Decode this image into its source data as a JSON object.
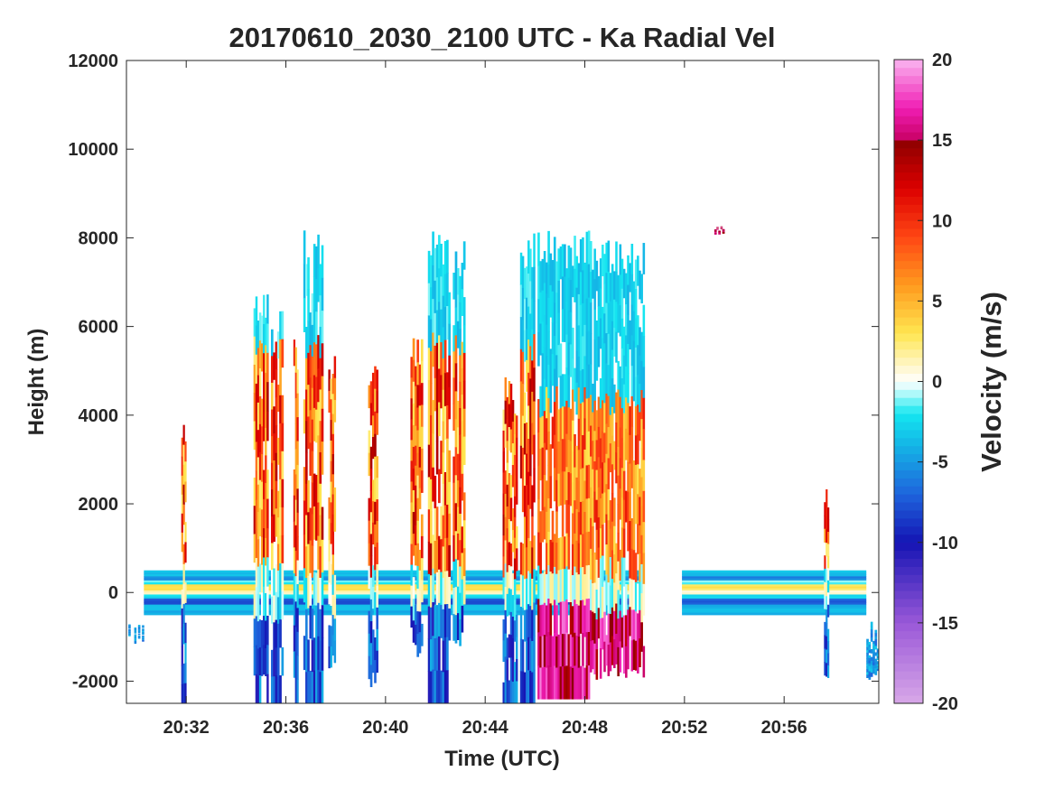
{
  "chart_data": {
    "type": "heatmap",
    "title": "20170610_2030_2100 UTC - Ka Radial Vel",
    "xlabel": "Time (UTC)",
    "ylabel": "Height (m)",
    "x_range_minutes": [
      29.6,
      59.8
    ],
    "x_ticks": [
      {
        "minute": 32,
        "label": "20:32"
      },
      {
        "minute": 36,
        "label": "20:36"
      },
      {
        "minute": 40,
        "label": "20:40"
      },
      {
        "minute": 44,
        "label": "20:44"
      },
      {
        "minute": 48,
        "label": "20:48"
      },
      {
        "minute": 52,
        "label": "20:52"
      },
      {
        "minute": 56,
        "label": "20:56"
      }
    ],
    "ylim": [
      -2500,
      12000
    ],
    "y_ticks": [
      12000,
      10000,
      8000,
      6000,
      4000,
      2000,
      0,
      -2000
    ],
    "y_tick_labels": [
      "12000",
      "10000",
      "8000",
      "6000",
      "4000",
      "2000",
      "0",
      "-2000"
    ],
    "colorbar": {
      "label": "Velocity (m/s)",
      "range": [
        -20,
        20
      ],
      "ticks": [
        20,
        15,
        10,
        5,
        0,
        -5,
        -10,
        -15,
        -20
      ],
      "tick_labels": [
        "20",
        "15",
        "10",
        "5",
        "0",
        "-5",
        "-10",
        "-15",
        "-20"
      ],
      "colors": [
        {
          "value": -20,
          "color": "#d8a8e8"
        },
        {
          "value": -15,
          "color": "#9a58d8"
        },
        {
          "value": -10,
          "color": "#1414b4"
        },
        {
          "value": -7,
          "color": "#1e64dc"
        },
        {
          "value": -4,
          "color": "#14b4e6"
        },
        {
          "value": -2,
          "color": "#14e6f0"
        },
        {
          "value": -0.7,
          "color": "#b4fafa"
        },
        {
          "value": 0,
          "color": "#ffffff"
        },
        {
          "value": 1,
          "color": "#fff6c8"
        },
        {
          "value": 3,
          "color": "#ffe650"
        },
        {
          "value": 6,
          "color": "#ff9a1e"
        },
        {
          "value": 9,
          "color": "#ff4614"
        },
        {
          "value": 12,
          "color": "#dc0000"
        },
        {
          "value": 15,
          "color": "#8c0000"
        },
        {
          "value": 15.01,
          "color": "#c80064"
        },
        {
          "value": 17,
          "color": "#f01eb4"
        },
        {
          "value": 20,
          "color": "#fab4f0"
        }
      ]
    },
    "surface_band": {
      "height_range": [
        -500,
        500
      ],
      "segments": [
        [
          30.3,
          50.4
        ],
        [
          51.9,
          59.3
        ]
      ]
    },
    "columns": [
      {
        "start": 29.6,
        "end": 30.3,
        "top": -700,
        "bottom": -1200,
        "type": "edge"
      },
      {
        "start": 31.8,
        "end": 32.0,
        "top": 4100,
        "bottom": -2500,
        "type": "updraft"
      },
      {
        "start": 34.7,
        "end": 35.3,
        "top": 7000,
        "bottom": -2500,
        "type": "updraft"
      },
      {
        "start": 35.4,
        "end": 35.9,
        "top": 6500,
        "bottom": -2500,
        "type": "updraft"
      },
      {
        "start": 36.3,
        "end": 36.5,
        "top": 5800,
        "bottom": -2500,
        "type": "updraft"
      },
      {
        "start": 36.7,
        "end": 37.5,
        "top": 8200,
        "bottom": -2500,
        "type": "updraft"
      },
      {
        "start": 37.7,
        "end": 38.0,
        "top": 5500,
        "bottom": -1800,
        "type": "updraft"
      },
      {
        "start": 39.3,
        "end": 39.7,
        "top": 5200,
        "bottom": -2200,
        "type": "updraft"
      },
      {
        "start": 41.0,
        "end": 41.5,
        "top": 6000,
        "bottom": -1500,
        "type": "updraft"
      },
      {
        "start": 41.7,
        "end": 42.6,
        "top": 8200,
        "bottom": -2500,
        "type": "updraft"
      },
      {
        "start": 42.7,
        "end": 43.2,
        "top": 8000,
        "bottom": -1200,
        "type": "updraft"
      },
      {
        "start": 44.7,
        "end": 45.3,
        "top": 4900,
        "bottom": -2500,
        "type": "updraft"
      },
      {
        "start": 45.4,
        "end": 46.0,
        "top": 8200,
        "bottom": -2500,
        "type": "updraft"
      },
      {
        "start": 46.1,
        "end": 48.2,
        "top": 8200,
        "bottom": -2400,
        "type": "anvil"
      },
      {
        "start": 48.2,
        "end": 50.4,
        "top": 8000,
        "bottom": -2000,
        "type": "anvil"
      },
      {
        "start": 53.2,
        "end": 53.6,
        "top": 8200,
        "bottom": 7900,
        "type": "spot"
      },
      {
        "start": 57.6,
        "end": 57.8,
        "top": 2600,
        "bottom": -2000,
        "type": "updraft"
      },
      {
        "start": 59.3,
        "end": 59.8,
        "top": -500,
        "bottom": -2000,
        "type": "edge"
      }
    ]
  }
}
